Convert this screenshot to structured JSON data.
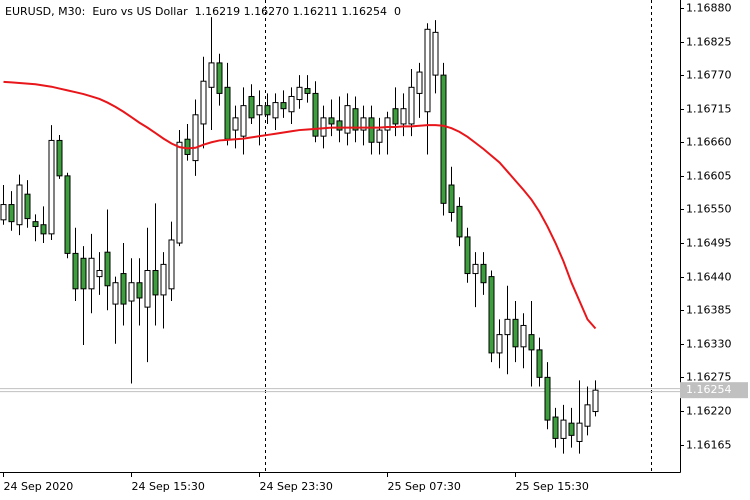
{
  "chart_data": {
    "type": "candlestick",
    "title": "EURUSD, M30:  Euro vs US Dollar  1.16219 1.16270 1.16211 1.16254  0",
    "categories": [
      "24 Sep 2020",
      null,
      null,
      null,
      null,
      null,
      null,
      null,
      null,
      null,
      null,
      null,
      null,
      null,
      null,
      null,
      "24 Sep 15:30",
      null,
      null,
      null,
      null,
      null,
      null,
      null,
      null,
      null,
      null,
      null,
      null,
      null,
      null,
      null,
      "24 Sep 23:30",
      null,
      null,
      null,
      null,
      null,
      null,
      null,
      null,
      null,
      null,
      null,
      null,
      null,
      null,
      null,
      "25 Sep 07:30",
      null,
      null,
      null,
      null,
      null,
      null,
      null,
      null,
      null,
      null,
      null,
      null,
      null,
      null,
      null,
      "25 Sep 15:30",
      null,
      null,
      null,
      null,
      null,
      null,
      null,
      null,
      null,
      null
    ],
    "open": [
      1.16533,
      1.16558,
      1.16525,
      1.16575,
      1.1653,
      1.16525,
      1.1651,
      1.16663,
      1.16605,
      1.16478,
      1.1647,
      1.1642,
      1.1644,
      1.1648,
      1.16395,
      1.16445,
      1.164,
      1.1643,
      1.1639,
      1.1645,
      1.1641,
      1.1642,
      1.16495,
      1.16665,
      1.1663,
      1.1669,
      1.1675,
      1.1679,
      1.1675,
      1.1668,
      1.1667,
      1.16735,
      1.16705,
      1.1672,
      1.167,
      1.16725,
      1.1671,
      1.1673,
      1.16748,
      1.1674,
      1.1667,
      1.167,
      1.16695,
      1.16675,
      1.16715,
      1.1668,
      1.167,
      1.1666,
      1.1668,
      1.16715,
      1.1669,
      1.1669,
      1.1674,
      1.1671,
      1.1677,
      1.1677,
      1.1659,
      1.16555,
      1.16505,
      1.16445,
      1.1646,
      1.1644,
      1.16315,
      1.16345,
      1.1637,
      1.16325,
      1.16345,
      1.1632,
      1.16275,
      1.1621,
      1.16175,
      1.162,
      1.1617,
      1.16195,
      1.16219
    ],
    "high": [
      1.1659,
      1.1658,
      1.16607,
      1.16598,
      1.16542,
      1.16555,
      1.16688,
      1.16672,
      1.1661,
      1.1652,
      1.1649,
      1.1651,
      1.1648,
      1.1655,
      1.1644,
      1.16495,
      1.1647,
      1.1647,
      1.1652,
      1.1656,
      1.1648,
      1.1653,
      1.1668,
      1.1669,
      1.1673,
      1.168,
      1.16865,
      1.16805,
      1.1679,
      1.1672,
      1.1675,
      1.16755,
      1.16745,
      1.1674,
      1.1674,
      1.16745,
      1.1675,
      1.1677,
      1.1677,
      1.1676,
      1.1672,
      1.1673,
      1.16735,
      1.1674,
      1.16735,
      1.1672,
      1.1672,
      1.167,
      1.1671,
      1.1675,
      1.1674,
      1.1678,
      1.1679,
      1.16855,
      1.1686,
      1.1679,
      1.1662,
      1.1657,
      1.1652,
      1.1648,
      1.1648,
      1.1645,
      1.1637,
      1.16425,
      1.164,
      1.1638,
      1.164,
      1.1634,
      1.163,
      1.16225,
      1.1623,
      1.16225,
      1.1627,
      1.1626,
      1.1627
    ],
    "low": [
      1.16525,
      1.16515,
      1.16508,
      1.1652,
      1.16498,
      1.16495,
      1.165,
      1.166,
      1.1647,
      1.164,
      1.16328,
      1.1638,
      1.1641,
      1.16385,
      1.1633,
      1.1636,
      1.16265,
      1.1636,
      1.163,
      1.1636,
      1.16355,
      1.164,
      1.1649,
      1.1663,
      1.16605,
      1.1665,
      1.1668,
      1.1672,
      1.16655,
      1.1665,
      1.1664,
      1.1669,
      1.16655,
      1.1669,
      1.1668,
      1.167,
      1.1669,
      1.16715,
      1.16725,
      1.1666,
      1.1665,
      1.1667,
      1.1666,
      1.16655,
      1.1666,
      1.16655,
      1.1664,
      1.1664,
      1.1664,
      1.1667,
      1.1667,
      1.1667,
      1.167,
      1.1664,
      1.1674,
      1.1654,
      1.1653,
      1.1649,
      1.1643,
      1.1639,
      1.1641,
      1.163,
      1.1629,
      1.1628,
      1.163,
      1.1629,
      1.1626,
      1.1626,
      1.1619,
      1.1616,
      1.1615,
      1.1616,
      1.1615,
      1.1618,
      1.16211
    ],
    "close": [
      1.16558,
      1.1653,
      1.1659,
      1.16535,
      1.16522,
      1.1651,
      1.16663,
      1.16605,
      1.16478,
      1.1642,
      1.1642,
      1.1647,
      1.1645,
      1.16425,
      1.1643,
      1.16395,
      1.1643,
      1.16405,
      1.1645,
      1.1641,
      1.1646,
      1.165,
      1.1666,
      1.1664,
      1.16705,
      1.1676,
      1.1679,
      1.1674,
      1.16665,
      1.167,
      1.1672,
      1.167,
      1.1672,
      1.16705,
      1.16725,
      1.16715,
      1.16735,
      1.1675,
      1.1674,
      1.1667,
      1.167,
      1.1669,
      1.1668,
      1.1672,
      1.1668,
      1.167,
      1.1666,
      1.1668,
      1.167,
      1.1669,
      1.16715,
      1.1675,
      1.16775,
      1.16845,
      1.1684,
      1.1656,
      1.16545,
      1.16505,
      1.16445,
      1.1646,
      1.1643,
      1.16315,
      1.16345,
      1.1637,
      1.16325,
      1.1636,
      1.1632,
      1.16275,
      1.16205,
      1.16175,
      1.16205,
      1.1618,
      1.162,
      1.1623,
      1.16254
    ],
    "bull_color": "#ffffff",
    "bear_color": "#3c9e3c",
    "ma": {
      "color": "#e8161a",
      "values": [
        1.16759,
        1.16758,
        1.16757,
        1.16756,
        1.16755,
        1.16753,
        1.16751,
        1.16748,
        1.16745,
        1.16742,
        1.16739,
        1.16735,
        1.16731,
        1.16725,
        1.16718,
        1.1671,
        1.16701,
        1.16692,
        1.16684,
        1.16675,
        1.16666,
        1.16658,
        1.16652,
        1.1665,
        1.16651,
        1.16656,
        1.1666,
        1.16663,
        1.16664,
        1.16665,
        1.16666,
        1.16668,
        1.1667,
        1.16672,
        1.16674,
        1.16676,
        1.16678,
        1.1668,
        1.16681,
        1.16682,
        1.16683,
        1.16684,
        1.16684,
        1.16684,
        1.16684,
        1.16684,
        1.16684,
        1.16684,
        1.16685,
        1.16685,
        1.16686,
        1.16686,
        1.16687,
        1.16688,
        1.16688,
        1.16687,
        1.16683,
        1.16677,
        1.16669,
        1.16659,
        1.16649,
        1.16638,
        1.16627,
        1.16612,
        1.16597,
        1.16582,
        1.16566,
        1.16546,
        1.16522,
        1.16495,
        1.16465,
        1.1643,
        1.164,
        1.1637,
        1.16355
      ]
    },
    "last_price": 1.16254,
    "ylim": [
      1.1612,
      1.16893
    ],
    "yticks": [
      {
        "value": 1.1688,
        "label": "1.16880"
      },
      {
        "value": 1.16825,
        "label": "1.16825"
      },
      {
        "value": 1.1677,
        "label": "1.16770"
      },
      {
        "value": 1.16715,
        "label": "1.16715"
      },
      {
        "value": 1.1666,
        "label": "1.16660"
      },
      {
        "value": 1.16605,
        "label": "1.16605"
      },
      {
        "value": 1.1655,
        "label": "1.16550"
      },
      {
        "value": 1.16495,
        "label": "1.16495"
      },
      {
        "value": 1.1644,
        "label": "1.16440"
      },
      {
        "value": 1.16385,
        "label": "1.16385"
      },
      {
        "value": 1.1633,
        "label": "1.16330"
      },
      {
        "value": 1.16275,
        "label": "1.16275"
      },
      {
        "value": 1.1622,
        "label": "1.16220"
      },
      {
        "value": 1.16165,
        "label": "1.16165"
      }
    ]
  }
}
